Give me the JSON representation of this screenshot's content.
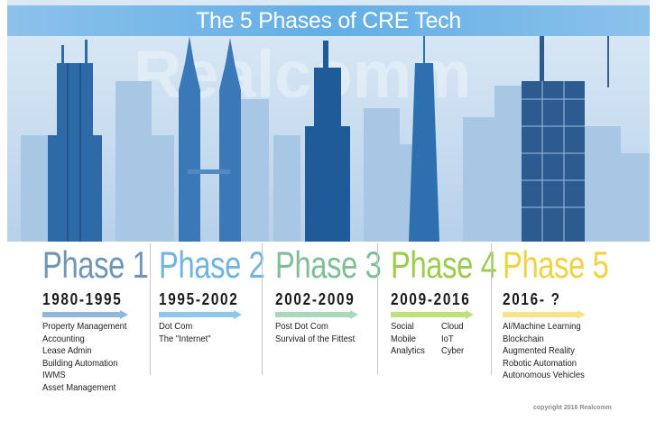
{
  "title": "The 5 Phases of CRE Tech",
  "watermark": "Realcomm",
  "phases": [
    {
      "label": "Phase 1",
      "years": "1980-1995",
      "color": "#6f96b4",
      "arrow_color": "#8fb7d9",
      "items": [
        "Property Management",
        "Accounting",
        "Lease Admin",
        "Building Automation",
        "IWMS",
        "Asset Management"
      ]
    },
    {
      "label": "Phase 2",
      "years": "1995-2002",
      "color": "#6fb4e2",
      "arrow_color": "#8fc6ea",
      "items": [
        "Dot Com",
        "The \"Internet\""
      ]
    },
    {
      "label": "Phase 3",
      "years": "2002-2009",
      "color": "#7fbf96",
      "arrow_color": "#a9d8bf",
      "items": [
        "Post Dot Com",
        "Survival of the Fittest"
      ]
    },
    {
      "label": "Phase 4",
      "years": "2009-2016",
      "color": "#9ccc4c",
      "arrow_color": "#bfe07f",
      "items": [
        "Social",
        "Mobile",
        "Analytics"
      ],
      "items_col2": [
        "Cloud",
        "IoT",
        "Cyber"
      ]
    },
    {
      "label": "Phase 5",
      "years": "2016- ?",
      "color": "#f0d342",
      "arrow_color": "#f6e38c",
      "items": [
        "AI/Machine Learning",
        "Blockchain",
        "Augmented Reality",
        "Robotic Automation",
        "Autonomous Vehicles"
      ]
    }
  ],
  "copyright": "copyright 2016 Realcomm"
}
